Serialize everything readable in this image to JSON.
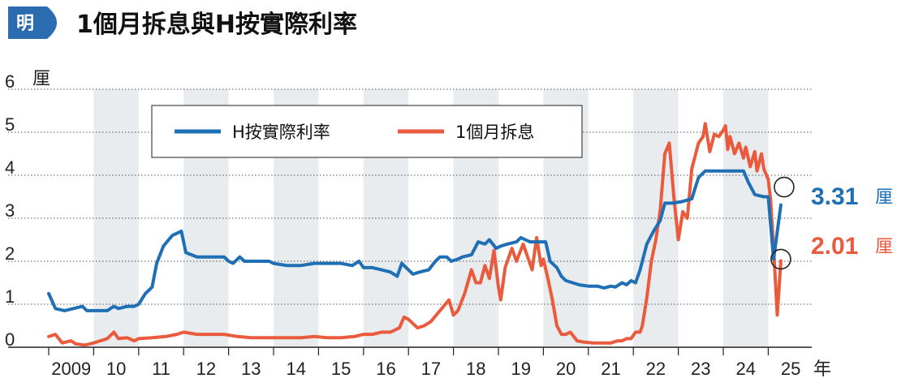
{
  "logo": {
    "text": "明",
    "color": "#2b6cb0"
  },
  "title": "1個月拆息與H按實際利率",
  "chart_data": {
    "type": "line",
    "y_unit": "厘",
    "x_unit": "年",
    "ylim": [
      0,
      6
    ],
    "yticks": [
      0,
      1,
      2,
      3,
      4,
      5,
      6
    ],
    "xlim": [
      2009,
      2025.3
    ],
    "xticks": [
      {
        "value": 2009,
        "label": "2009"
      },
      {
        "value": 2010,
        "label": "10"
      },
      {
        "value": 2011,
        "label": "11"
      },
      {
        "value": 2012,
        "label": "12"
      },
      {
        "value": 2013,
        "label": "13"
      },
      {
        "value": 2014,
        "label": "14"
      },
      {
        "value": 2015,
        "label": "15"
      },
      {
        "value": 2016,
        "label": "16"
      },
      {
        "value": 2017,
        "label": "17"
      },
      {
        "value": 2018,
        "label": "18"
      },
      {
        "value": 2019,
        "label": "19"
      },
      {
        "value": 2020,
        "label": "20"
      },
      {
        "value": 2021,
        "label": "21"
      },
      {
        "value": 2022,
        "label": "22"
      },
      {
        "value": 2023,
        "label": "23"
      },
      {
        "value": 2024,
        "label": "24"
      },
      {
        "value": 2025,
        "label": "25"
      }
    ],
    "grid": true,
    "legend_position": "top-left",
    "series": [
      {
        "name": "H按實際利率",
        "color": "#1f6fb5",
        "end_label": "3.31",
        "points": [
          [
            2009.0,
            1.25
          ],
          [
            2009.15,
            0.9
          ],
          [
            2009.35,
            0.85
          ],
          [
            2009.55,
            0.9
          ],
          [
            2009.75,
            0.95
          ],
          [
            2009.85,
            0.85
          ],
          [
            2010.0,
            0.85
          ],
          [
            2010.3,
            0.85
          ],
          [
            2010.45,
            0.95
          ],
          [
            2010.55,
            0.9
          ],
          [
            2010.75,
            0.95
          ],
          [
            2010.9,
            0.95
          ],
          [
            2011.0,
            1.0
          ],
          [
            2011.15,
            1.25
          ],
          [
            2011.3,
            1.4
          ],
          [
            2011.4,
            1.95
          ],
          [
            2011.55,
            2.35
          ],
          [
            2011.75,
            2.6
          ],
          [
            2011.95,
            2.7
          ],
          [
            2012.05,
            2.2
          ],
          [
            2012.3,
            2.1
          ],
          [
            2012.6,
            2.1
          ],
          [
            2012.9,
            2.1
          ],
          [
            2013.0,
            2.0
          ],
          [
            2013.1,
            1.95
          ],
          [
            2013.25,
            2.1
          ],
          [
            2013.35,
            2.0
          ],
          [
            2013.6,
            2.0
          ],
          [
            2013.9,
            2.0
          ],
          [
            2014.0,
            1.95
          ],
          [
            2014.3,
            1.9
          ],
          [
            2014.6,
            1.9
          ],
          [
            2014.9,
            1.95
          ],
          [
            2015.2,
            1.95
          ],
          [
            2015.5,
            1.95
          ],
          [
            2015.75,
            1.9
          ],
          [
            2015.9,
            2.0
          ],
          [
            2016.0,
            1.85
          ],
          [
            2016.2,
            1.85
          ],
          [
            2016.4,
            1.8
          ],
          [
            2016.6,
            1.75
          ],
          [
            2016.75,
            1.65
          ],
          [
            2016.85,
            1.95
          ],
          [
            2016.95,
            1.85
          ],
          [
            2017.1,
            1.7
          ],
          [
            2017.25,
            1.75
          ],
          [
            2017.45,
            1.8
          ],
          [
            2017.6,
            2.0
          ],
          [
            2017.7,
            2.1
          ],
          [
            2017.85,
            2.1
          ],
          [
            2017.95,
            2.0
          ],
          [
            2018.1,
            2.05
          ],
          [
            2018.2,
            2.1
          ],
          [
            2018.4,
            2.15
          ],
          [
            2018.55,
            2.45
          ],
          [
            2018.7,
            2.4
          ],
          [
            2018.8,
            2.5
          ],
          [
            2018.95,
            2.3
          ],
          [
            2019.05,
            2.35
          ],
          [
            2019.2,
            2.4
          ],
          [
            2019.4,
            2.45
          ],
          [
            2019.5,
            2.55
          ],
          [
            2019.6,
            2.5
          ],
          [
            2019.7,
            2.45
          ],
          [
            2019.85,
            2.45
          ],
          [
            2020.05,
            2.45
          ],
          [
            2020.15,
            2.0
          ],
          [
            2020.3,
            1.85
          ],
          [
            2020.4,
            1.65
          ],
          [
            2020.5,
            1.55
          ],
          [
            2020.65,
            1.5
          ],
          [
            2020.8,
            1.45
          ],
          [
            2021.0,
            1.42
          ],
          [
            2021.2,
            1.42
          ],
          [
            2021.35,
            1.38
          ],
          [
            2021.5,
            1.42
          ],
          [
            2021.6,
            1.4
          ],
          [
            2021.75,
            1.5
          ],
          [
            2021.85,
            1.45
          ],
          [
            2021.95,
            1.55
          ],
          [
            2022.05,
            1.5
          ],
          [
            2022.15,
            1.8
          ],
          [
            2022.3,
            2.4
          ],
          [
            2022.45,
            2.7
          ],
          [
            2022.6,
            2.95
          ],
          [
            2022.7,
            3.35
          ],
          [
            2022.85,
            3.35
          ],
          [
            2023.05,
            3.38
          ],
          [
            2023.3,
            3.45
          ],
          [
            2023.45,
            3.95
          ],
          [
            2023.6,
            4.1
          ],
          [
            2023.9,
            4.1
          ],
          [
            2024.15,
            4.1
          ],
          [
            2024.45,
            4.1
          ],
          [
            2024.55,
            3.85
          ],
          [
            2024.7,
            3.55
          ],
          [
            2024.9,
            3.5
          ],
          [
            2025.0,
            3.5
          ],
          [
            2025.12,
            2.05
          ],
          [
            2025.28,
            3.31
          ]
        ]
      },
      {
        "name": "1個月拆息",
        "color": "#ea5a3d",
        "end_label": "2.01",
        "points": [
          [
            2009.0,
            0.25
          ],
          [
            2009.15,
            0.3
          ],
          [
            2009.3,
            0.1
          ],
          [
            2009.5,
            0.15
          ],
          [
            2009.6,
            0.08
          ],
          [
            2009.8,
            0.05
          ],
          [
            2010.0,
            0.1
          ],
          [
            2010.3,
            0.2
          ],
          [
            2010.45,
            0.35
          ],
          [
            2010.55,
            0.2
          ],
          [
            2010.75,
            0.22
          ],
          [
            2010.9,
            0.15
          ],
          [
            2011.0,
            0.2
          ],
          [
            2011.3,
            0.22
          ],
          [
            2011.6,
            0.25
          ],
          [
            2011.85,
            0.3
          ],
          [
            2012.0,
            0.35
          ],
          [
            2012.3,
            0.3
          ],
          [
            2012.6,
            0.3
          ],
          [
            2012.9,
            0.3
          ],
          [
            2013.2,
            0.25
          ],
          [
            2013.5,
            0.22
          ],
          [
            2013.8,
            0.22
          ],
          [
            2014.2,
            0.22
          ],
          [
            2014.6,
            0.22
          ],
          [
            2014.9,
            0.25
          ],
          [
            2015.2,
            0.22
          ],
          [
            2015.5,
            0.22
          ],
          [
            2015.8,
            0.25
          ],
          [
            2016.0,
            0.3
          ],
          [
            2016.2,
            0.3
          ],
          [
            2016.4,
            0.35
          ],
          [
            2016.6,
            0.35
          ],
          [
            2016.8,
            0.45
          ],
          [
            2016.9,
            0.7
          ],
          [
            2017.0,
            0.65
          ],
          [
            2017.2,
            0.45
          ],
          [
            2017.35,
            0.5
          ],
          [
            2017.5,
            0.6
          ],
          [
            2017.7,
            0.85
          ],
          [
            2017.9,
            1.1
          ],
          [
            2018.0,
            0.75
          ],
          [
            2018.1,
            0.85
          ],
          [
            2018.25,
            1.25
          ],
          [
            2018.4,
            1.8
          ],
          [
            2018.5,
            1.5
          ],
          [
            2018.6,
            1.5
          ],
          [
            2018.7,
            1.9
          ],
          [
            2018.8,
            1.6
          ],
          [
            2018.9,
            2.25
          ],
          [
            2019.0,
            1.4
          ],
          [
            2019.05,
            1.1
          ],
          [
            2019.15,
            1.85
          ],
          [
            2019.3,
            2.3
          ],
          [
            2019.4,
            2.0
          ],
          [
            2019.55,
            2.4
          ],
          [
            2019.65,
            2.1
          ],
          [
            2019.75,
            1.8
          ],
          [
            2019.85,
            2.55
          ],
          [
            2019.95,
            1.9
          ],
          [
            2020.0,
            2.05
          ],
          [
            2020.1,
            1.6
          ],
          [
            2020.2,
            1.1
          ],
          [
            2020.3,
            0.5
          ],
          [
            2020.4,
            0.3
          ],
          [
            2020.5,
            0.3
          ],
          [
            2020.6,
            0.35
          ],
          [
            2020.75,
            0.15
          ],
          [
            2020.9,
            0.12
          ],
          [
            2021.1,
            0.1
          ],
          [
            2021.3,
            0.1
          ],
          [
            2021.5,
            0.1
          ],
          [
            2021.65,
            0.15
          ],
          [
            2021.75,
            0.15
          ],
          [
            2021.85,
            0.2
          ],
          [
            2021.95,
            0.2
          ],
          [
            2022.05,
            0.35
          ],
          [
            2022.15,
            0.35
          ],
          [
            2022.2,
            0.5
          ],
          [
            2022.3,
            1.15
          ],
          [
            2022.4,
            2.0
          ],
          [
            2022.5,
            2.5
          ],
          [
            2022.6,
            3.2
          ],
          [
            2022.7,
            4.5
          ],
          [
            2022.8,
            4.75
          ],
          [
            2022.9,
            3.5
          ],
          [
            2023.0,
            2.5
          ],
          [
            2023.1,
            3.15
          ],
          [
            2023.2,
            3.0
          ],
          [
            2023.3,
            4.15
          ],
          [
            2023.45,
            4.75
          ],
          [
            2023.55,
            4.9
          ],
          [
            2023.6,
            5.2
          ],
          [
            2023.7,
            4.55
          ],
          [
            2023.8,
            4.95
          ],
          [
            2023.9,
            4.9
          ],
          [
            2024.0,
            5.05
          ],
          [
            2024.05,
            5.15
          ],
          [
            2024.1,
            4.6
          ],
          [
            2024.15,
            4.9
          ],
          [
            2024.25,
            4.5
          ],
          [
            2024.35,
            4.75
          ],
          [
            2024.45,
            4.4
          ],
          [
            2024.5,
            4.65
          ],
          [
            2024.6,
            4.2
          ],
          [
            2024.7,
            4.55
          ],
          [
            2024.75,
            4.1
          ],
          [
            2024.85,
            4.5
          ],
          [
            2024.9,
            4.15
          ],
          [
            2025.0,
            3.9
          ],
          [
            2025.05,
            3.45
          ],
          [
            2025.12,
            2.3
          ],
          [
            2025.2,
            0.75
          ],
          [
            2025.28,
            2.01
          ]
        ]
      }
    ]
  }
}
